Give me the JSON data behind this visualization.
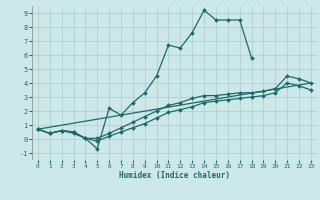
{
  "bg_color": "#cde8e8",
  "grid_color": "#aacccc",
  "line_color": "#1a6b6b",
  "xlabel": "Humidex (Indice chaleur)",
  "xlim": [
    -0.5,
    23.5
  ],
  "ylim": [
    -1.5,
    9.5
  ],
  "xticks": [
    0,
    1,
    2,
    3,
    4,
    5,
    6,
    7,
    8,
    9,
    10,
    11,
    12,
    13,
    14,
    15,
    16,
    17,
    18,
    19,
    20,
    21,
    22,
    23
  ],
  "yticks": [
    -1,
    0,
    1,
    2,
    3,
    4,
    5,
    6,
    7,
    8,
    9
  ],
  "curve1_x": [
    0,
    1,
    2,
    3,
    4,
    5,
    6,
    7,
    8,
    9,
    10,
    11,
    12,
    13,
    14,
    15,
    16,
    17,
    18
  ],
  "curve1_y": [
    0.7,
    0.4,
    0.6,
    0.5,
    0.05,
    -0.7,
    2.2,
    1.7,
    2.6,
    3.3,
    4.5,
    6.7,
    6.5,
    7.6,
    9.2,
    8.5,
    8.5,
    8.5,
    5.8
  ],
  "curve2_x": [
    0,
    1,
    2,
    3,
    4,
    5,
    6,
    7,
    8,
    9,
    10,
    11,
    12,
    13,
    14,
    15,
    16,
    17,
    18,
    19,
    20,
    21,
    22,
    23
  ],
  "curve2_y": [
    0.7,
    0.4,
    0.6,
    0.5,
    0.05,
    0.05,
    0.4,
    0.8,
    1.2,
    1.6,
    2.0,
    2.4,
    2.6,
    2.9,
    3.1,
    3.1,
    3.2,
    3.3,
    3.3,
    3.4,
    3.6,
    4.5,
    4.3,
    4.0
  ],
  "curve3_x": [
    0,
    1,
    2,
    3,
    4,
    5,
    6,
    7,
    8,
    9,
    10,
    11,
    12,
    13,
    14,
    15,
    16,
    17,
    18,
    19,
    20,
    21,
    22,
    23
  ],
  "curve3_y": [
    0.7,
    0.4,
    0.6,
    0.4,
    0.05,
    -0.15,
    0.2,
    0.5,
    0.8,
    1.1,
    1.5,
    1.9,
    2.1,
    2.3,
    2.6,
    2.7,
    2.8,
    2.9,
    3.0,
    3.1,
    3.3,
    4.0,
    3.8,
    3.5
  ],
  "line4_x": [
    0,
    23
  ],
  "line4_y": [
    0.7,
    4.0
  ],
  "figsize": [
    3.2,
    2.0
  ],
  "dpi": 100
}
